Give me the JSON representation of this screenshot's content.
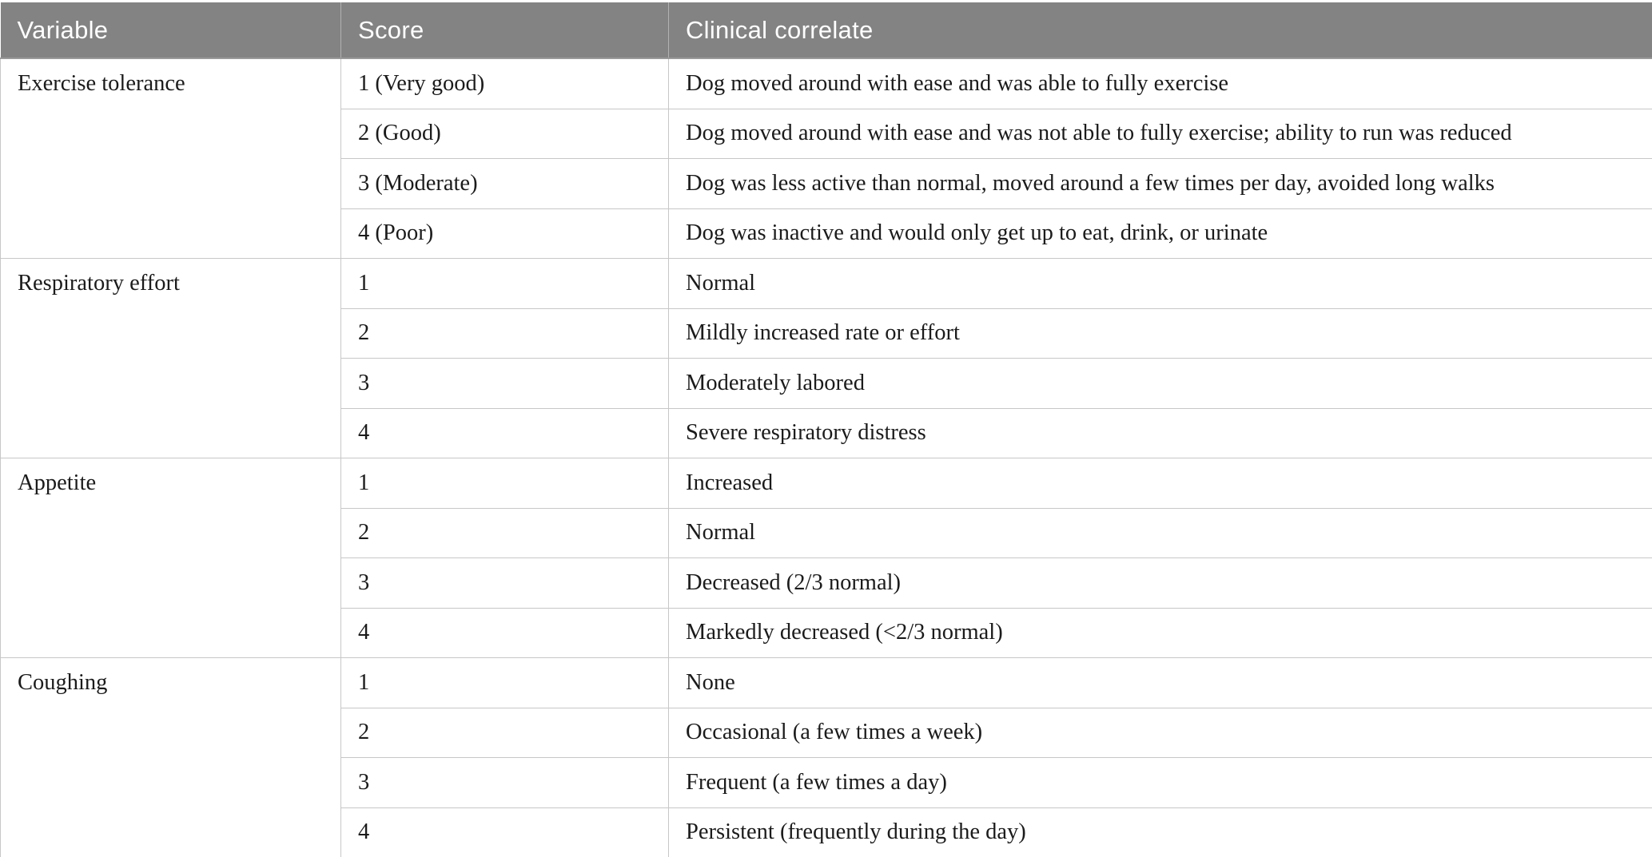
{
  "table": {
    "title_semantic": "Clinical scoring table for dogs",
    "columns": {
      "variable": "Variable",
      "score": "Score",
      "correlate": "Clinical correlate"
    },
    "colors": {
      "header_bg": "#838383",
      "header_text": "#ffffff",
      "body_text": "#1b1b1b",
      "grid_line": "#c7c7c7",
      "strong_line": "#9b9b9b"
    },
    "sections": [
      {
        "variable": "Exercise tolerance",
        "rows": [
          {
            "score": "1 (Very good)",
            "correlate": "Dog moved around with ease and was able to fully exercise"
          },
          {
            "score": "2 (Good)",
            "correlate": "Dog moved around with ease and was not able to fully exercise; ability to run was reduced"
          },
          {
            "score": "3 (Moderate)",
            "correlate": "Dog was less active than normal, moved around a few times per day, avoided long walks"
          },
          {
            "score": "4 (Poor)",
            "correlate": "Dog was inactive and would only get up to eat, drink, or urinate"
          }
        ]
      },
      {
        "variable": "Respiratory effort",
        "rows": [
          {
            "score": "1",
            "correlate": "Normal"
          },
          {
            "score": "2",
            "correlate": "Mildly increased rate or effort"
          },
          {
            "score": "3",
            "correlate": "Moderately labored"
          },
          {
            "score": "4",
            "correlate": "Severe respiratory distress"
          }
        ]
      },
      {
        "variable": "Appetite",
        "rows": [
          {
            "score": "1",
            "correlate": "Increased"
          },
          {
            "score": "2",
            "correlate": "Normal"
          },
          {
            "score": "3",
            "correlate": "Decreased (2/3 normal)"
          },
          {
            "score": "4",
            "correlate": "Markedly decreased (<2/3 normal)"
          }
        ]
      },
      {
        "variable": "Coughing",
        "rows": [
          {
            "score": "1",
            "correlate": "None"
          },
          {
            "score": "2",
            "correlate": "Occasional (a few times a week)"
          },
          {
            "score": "3",
            "correlate": "Frequent (a few times a day)"
          },
          {
            "score": "4",
            "correlate": "Persistent (frequently during the day)"
          }
        ]
      }
    ]
  }
}
